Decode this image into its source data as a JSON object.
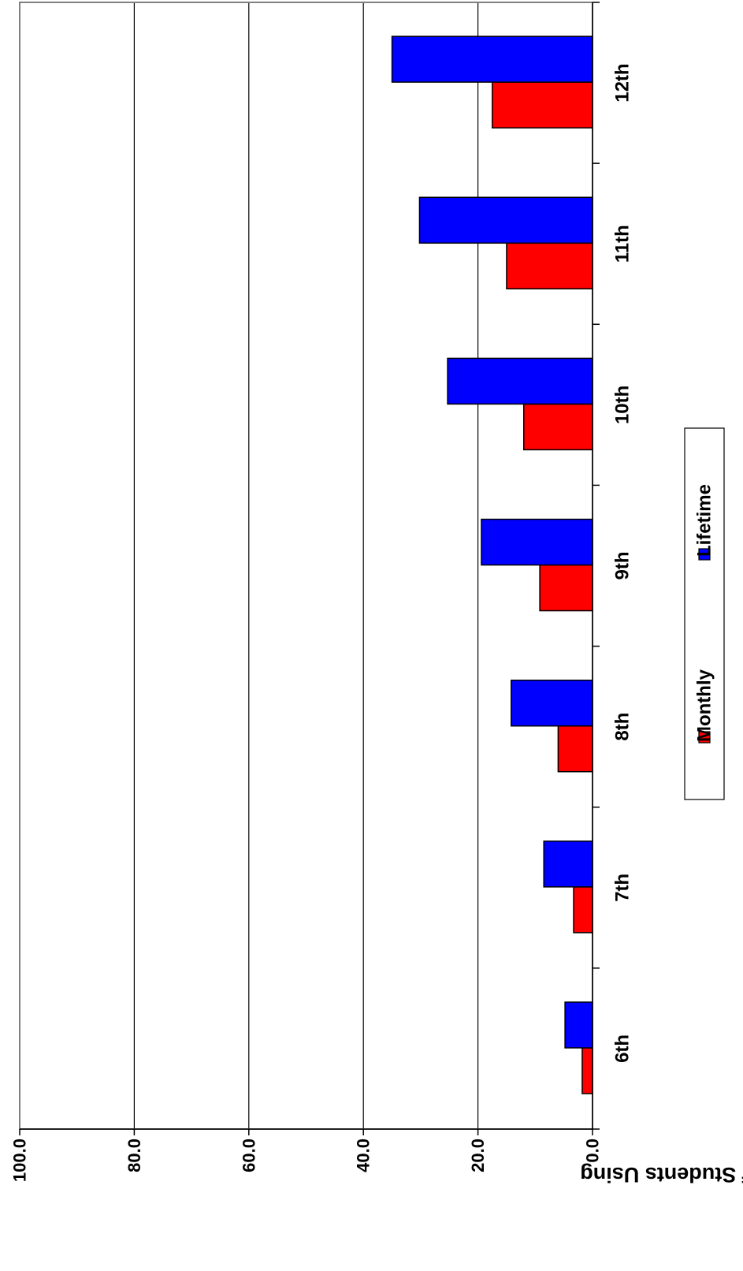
{
  "chart_data": {
    "type": "bar",
    "orientation": "rotated",
    "categories": [
      "6th",
      "7th",
      "8th",
      "9th",
      "10th",
      "11th",
      "12th"
    ],
    "series": [
      {
        "name": "Monthly",
        "color": "#ff0000",
        "values": [
          1.8,
          3.3,
          6.0,
          9.2,
          12.0,
          15.0,
          17.5
        ]
      },
      {
        "name": "Lifetime",
        "color": "#0000ff",
        "values": [
          4.8,
          8.5,
          14.2,
          19.4,
          25.3,
          30.2,
          35.0
        ]
      }
    ],
    "ylabel": "Percent of Students Using",
    "xlabel": "",
    "ylim": [
      0,
      100
    ],
    "yticks": [
      "0.0",
      "20.0",
      "40.0",
      "60.0",
      "80.0",
      "100.0"
    ],
    "grid": true,
    "legend": "bottom"
  }
}
